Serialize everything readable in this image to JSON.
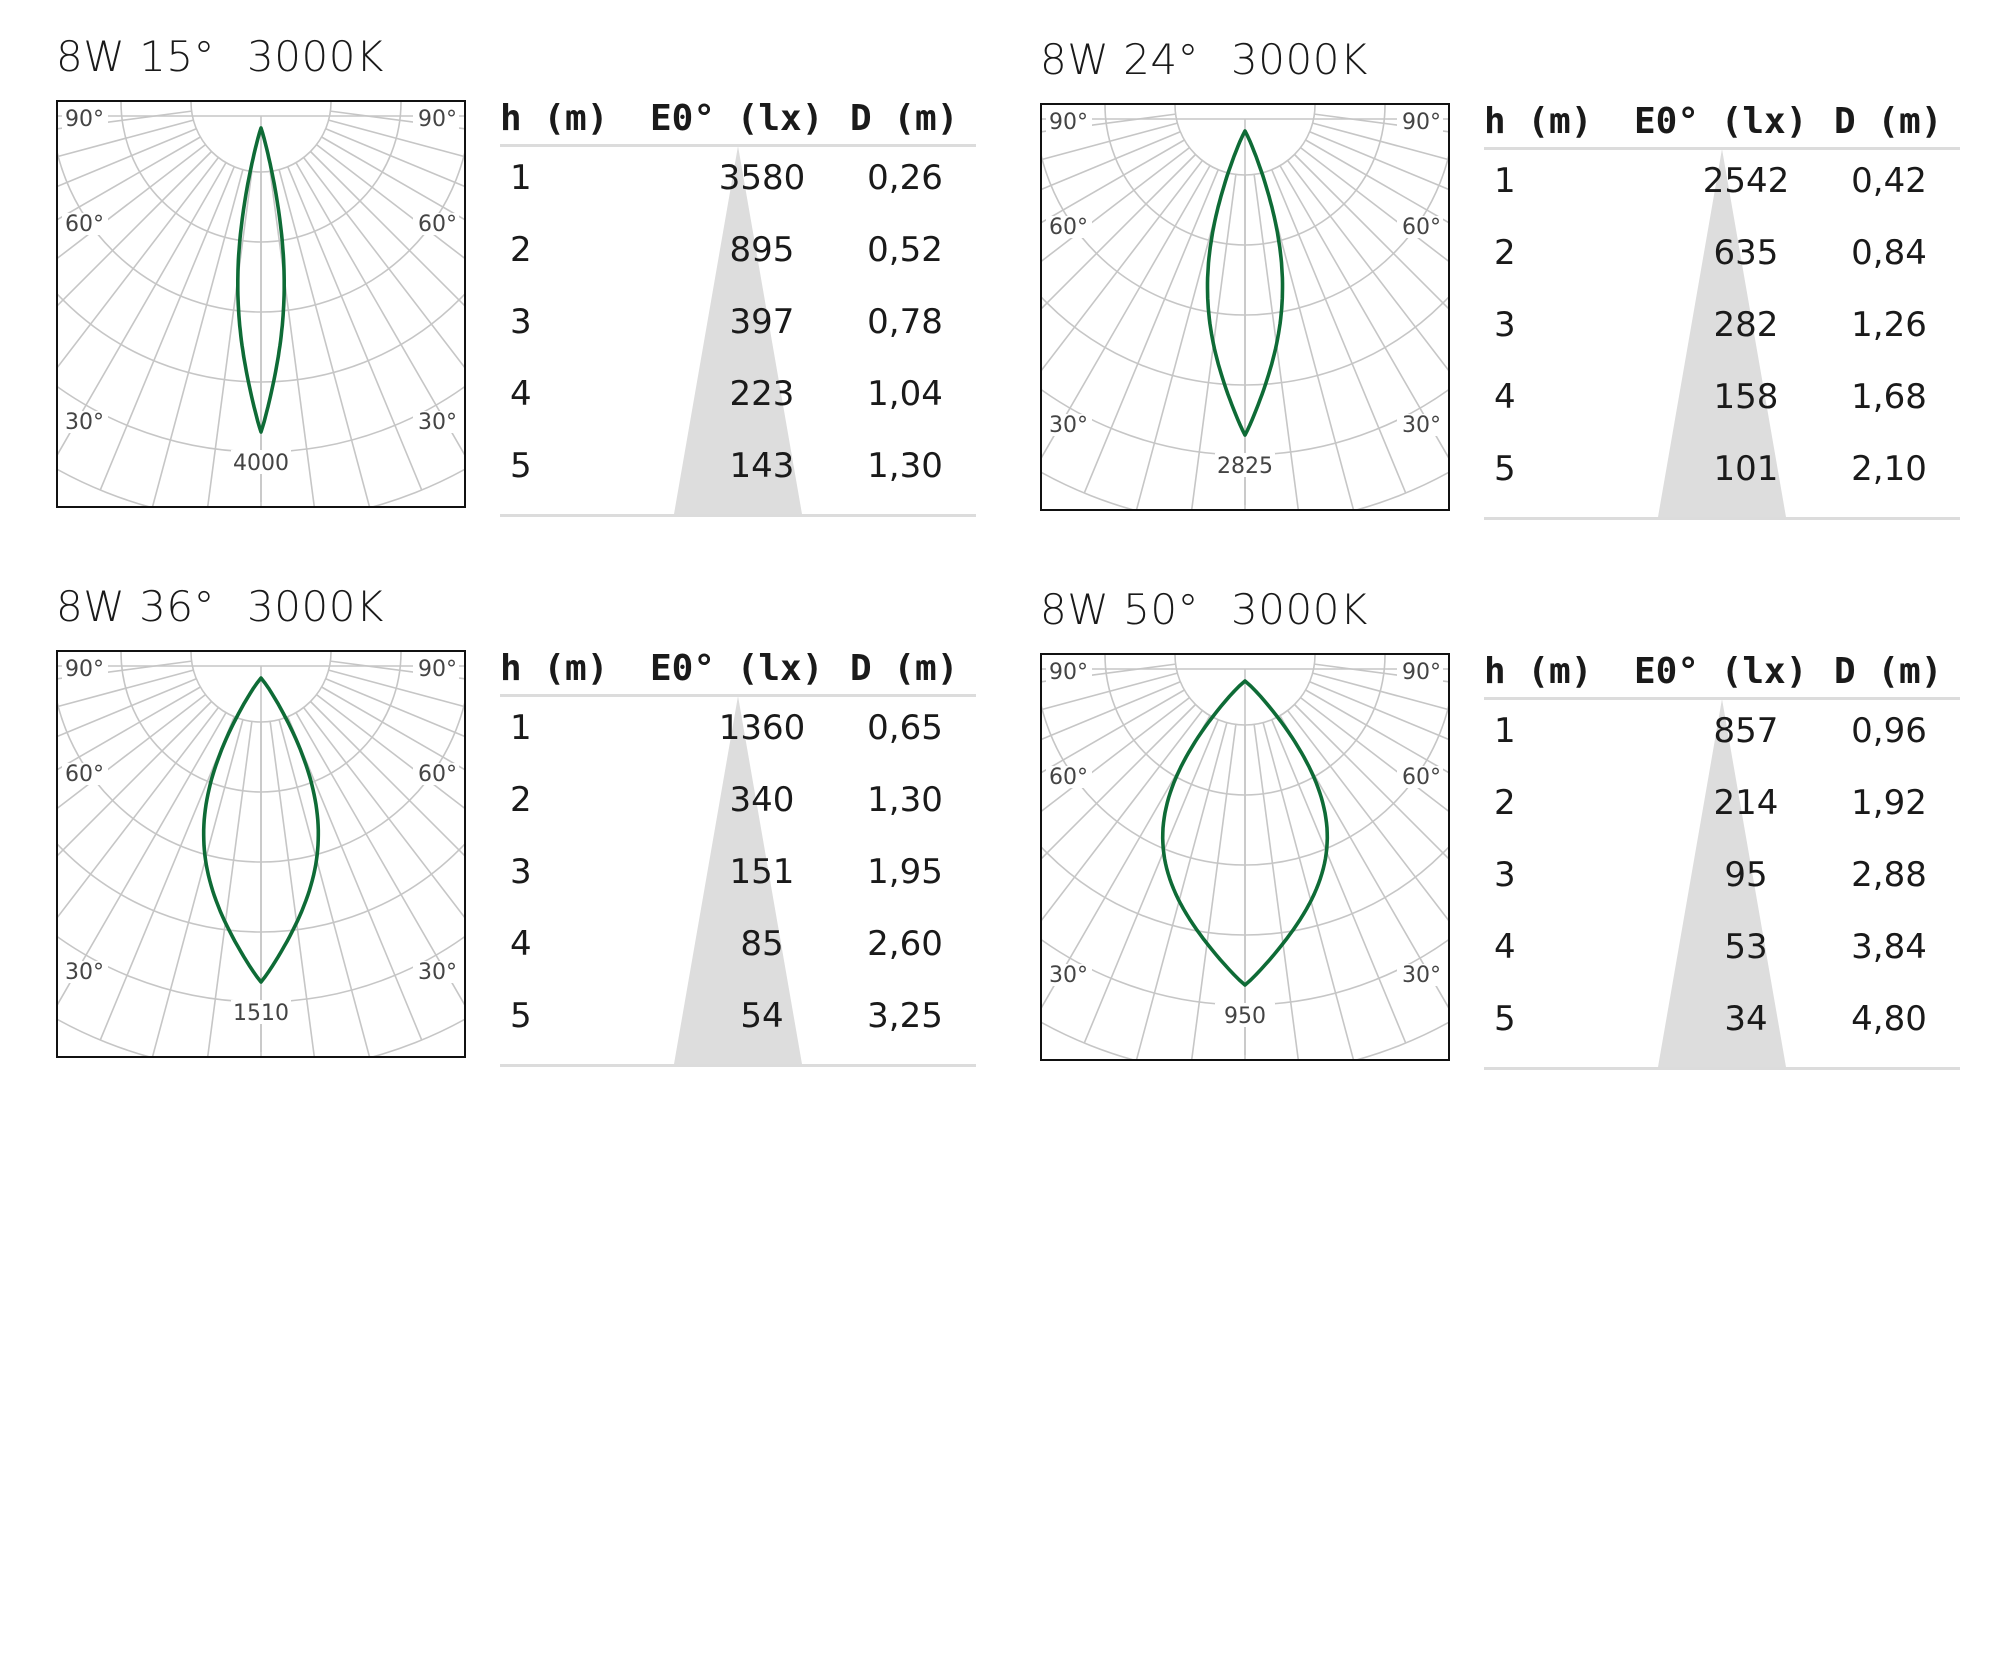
{
  "theme": {
    "curve": "#0e6b36",
    "grid": "#c6c6c6",
    "cone": "#dddddd",
    "text": "#1a1a1a"
  },
  "chart_data": [
    {
      "type": "polar",
      "title": "8W 15°",
      "cct": "3000K",
      "beam_angle_deg": 15,
      "angle_labels": [
        "90°",
        "60°",
        "30°"
      ],
      "peak_value": "4000",
      "table": {
        "headers": [
          "h (m)",
          "E0° (lx)",
          "D (m)"
        ],
        "rows": [
          [
            "1",
            "3580",
            "0,26"
          ],
          [
            "2",
            "895",
            "0,52"
          ],
          [
            "3",
            "397",
            "0,78"
          ],
          [
            "4",
            "223",
            "1,04"
          ],
          [
            "5",
            "143",
            "1,30"
          ]
        ]
      }
    },
    {
      "type": "polar",
      "title": "8W 24°",
      "cct": "3000K",
      "beam_angle_deg": 24,
      "angle_labels": [
        "90°",
        "60°",
        "30°"
      ],
      "peak_value": "2825",
      "table": {
        "headers": [
          "h (m)",
          "E0° (lx)",
          "D (m)"
        ],
        "rows": [
          [
            "1",
            "2542",
            "0,42"
          ],
          [
            "2",
            "635",
            "0,84"
          ],
          [
            "3",
            "282",
            "1,26"
          ],
          [
            "4",
            "158",
            "1,68"
          ],
          [
            "5",
            "101",
            "2,10"
          ]
        ]
      }
    },
    {
      "type": "polar",
      "title": "8W 36°",
      "cct": "3000K",
      "beam_angle_deg": 36,
      "angle_labels": [
        "90°",
        "60°",
        "30°"
      ],
      "peak_value": "1510",
      "table": {
        "headers": [
          "h (m)",
          "E0° (lx)",
          "D (m)"
        ],
        "rows": [
          [
            "1",
            "1360",
            "0,65"
          ],
          [
            "2",
            "340",
            "1,30"
          ],
          [
            "3",
            "151",
            "1,95"
          ],
          [
            "4",
            "85",
            "2,60"
          ],
          [
            "5",
            "54",
            "3,25"
          ]
        ]
      }
    },
    {
      "type": "polar",
      "title": "8W 50°",
      "cct": "3000K",
      "beam_angle_deg": 50,
      "angle_labels": [
        "90°",
        "60°",
        "30°"
      ],
      "peak_value": "950",
      "table": {
        "headers": [
          "h (m)",
          "E0° (lx)",
          "D (m)"
        ],
        "rows": [
          [
            "1",
            "857",
            "0,96"
          ],
          [
            "2",
            "214",
            "1,92"
          ],
          [
            "3",
            "95",
            "2,88"
          ],
          [
            "4",
            "53",
            "3,84"
          ],
          [
            "5",
            "34",
            "4,80"
          ]
        ]
      }
    }
  ]
}
